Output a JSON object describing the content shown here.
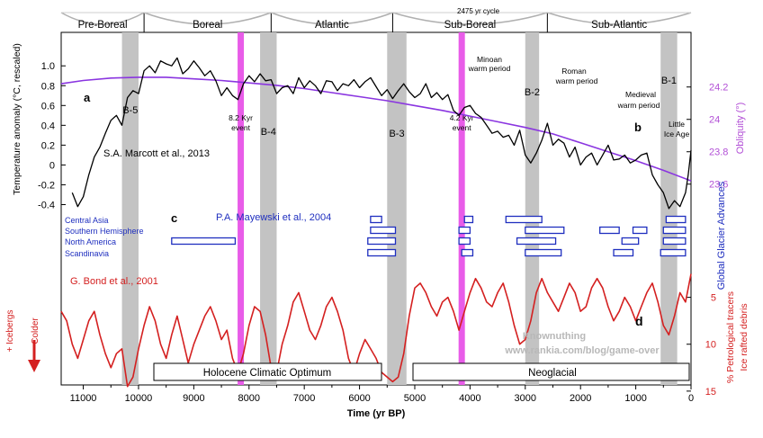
{
  "chart_data": {
    "type": "line",
    "x_axis": {
      "label": "Time (yr BP)",
      "range": [
        11400,
        0
      ],
      "ticks": [
        11000,
        10000,
        9000,
        8000,
        7000,
        6000,
        5000,
        4000,
        3000,
        2000,
        1000,
        0
      ]
    },
    "periods": [
      {
        "name": "Pre-Boreal",
        "start": 11400,
        "end": 9900
      },
      {
        "name": "Boreal",
        "start": 9900,
        "end": 7600
      },
      {
        "name": "Atlantic",
        "start": 7600,
        "end": 5400
      },
      {
        "name": "Sub-Boreal",
        "start": 5400,
        "end": 2600
      },
      {
        "name": "Sub-Atlantic",
        "start": 2600,
        "end": 0
      }
    ],
    "cycle_label": "2475 yr cycle",
    "bond_events": [
      {
        "name": "B-5",
        "start": 10300,
        "end": 10000
      },
      {
        "name": "B-4",
        "start": 7800,
        "end": 7500
      },
      {
        "name": "B-3",
        "start": 5500,
        "end": 5150
      },
      {
        "name": "B-2",
        "start": 3000,
        "end": 2750
      },
      {
        "name": "B-1",
        "start": 550,
        "end": 250
      }
    ],
    "pink_events": [
      {
        "label": "8.2 Kyr event",
        "x": 8150
      },
      {
        "label": "4.2 Kyr event",
        "x": 4150
      }
    ],
    "temperature": {
      "name": "S.A. Marcott et al., 2013",
      "panel": "a",
      "ylabel": "Temperature anomaly (°C, rescaled)",
      "ylim": [
        -0.45,
        1.12
      ],
      "ticks": [
        -0.4,
        -0.2,
        0,
        0.2,
        0.4,
        0.6,
        0.8,
        1.0
      ],
      "tick_labels": [
        "-0.4",
        "-0.2",
        "0",
        "0.2",
        "0.4",
        "0.6",
        "0.8",
        "1.0"
      ],
      "x": [
        11200,
        11100,
        11000,
        10900,
        10800,
        10700,
        10600,
        10500,
        10400,
        10300,
        10200,
        10100,
        10000,
        9900,
        9800,
        9700,
        9600,
        9500,
        9400,
        9300,
        9200,
        9100,
        9000,
        8900,
        8800,
        8700,
        8600,
        8500,
        8400,
        8300,
        8200,
        8100,
        8000,
        7900,
        7800,
        7700,
        7600,
        7500,
        7400,
        7300,
        7200,
        7100,
        7000,
        6900,
        6800,
        6700,
        6600,
        6500,
        6400,
        6300,
        6200,
        6100,
        6000,
        5900,
        5800,
        5700,
        5600,
        5500,
        5400,
        5300,
        5200,
        5100,
        5000,
        4900,
        4800,
        4700,
        4600,
        4500,
        4400,
        4300,
        4200,
        4100,
        4000,
        3900,
        3800,
        3700,
        3600,
        3500,
        3400,
        3300,
        3200,
        3100,
        3000,
        2900,
        2800,
        2700,
        2600,
        2500,
        2400,
        2300,
        2200,
        2100,
        2000,
        1900,
        1800,
        1700,
        1600,
        1500,
        1400,
        1300,
        1200,
        1100,
        1000,
        900,
        800,
        700,
        600,
        500,
        400,
        300,
        200,
        100,
        50,
        0
      ],
      "y": [
        -0.28,
        -0.42,
        -0.32,
        -0.1,
        0.08,
        0.18,
        0.32,
        0.45,
        0.5,
        0.4,
        0.68,
        0.75,
        0.72,
        0.95,
        1.0,
        0.93,
        1.05,
        1.02,
        1.0,
        1.08,
        0.92,
        0.97,
        1.05,
        0.98,
        0.9,
        0.95,
        0.85,
        0.7,
        0.78,
        0.7,
        0.66,
        0.82,
        0.9,
        0.84,
        0.92,
        0.85,
        0.86,
        0.72,
        0.78,
        0.8,
        0.72,
        0.88,
        0.78,
        0.85,
        0.8,
        0.72,
        0.85,
        0.84,
        0.75,
        0.82,
        0.8,
        0.86,
        0.78,
        0.84,
        0.88,
        0.79,
        0.7,
        0.76,
        0.67,
        0.75,
        0.82,
        0.74,
        0.68,
        0.72,
        0.82,
        0.68,
        0.73,
        0.66,
        0.71,
        0.55,
        0.5,
        0.58,
        0.6,
        0.52,
        0.48,
        0.4,
        0.32,
        0.34,
        0.28,
        0.3,
        0.2,
        0.35,
        0.1,
        0.02,
        0.12,
        0.25,
        0.42,
        0.2,
        0.26,
        0.22,
        0.08,
        0.18,
        0.0,
        0.08,
        0.12,
        0.0,
        0.1,
        0.2,
        0.05,
        0.06,
        0.1,
        0.02,
        0.05,
        0.1,
        0.12,
        -0.1,
        -0.2,
        -0.28,
        -0.44,
        -0.36,
        -0.42,
        -0.28,
        -0.1,
        0.15
      ]
    },
    "obliquity": {
      "ylabel": "Obliquity (°)",
      "ticks": [
        23.6,
        23.8,
        24,
        24.2
      ],
      "tick_labels": [
        "23.6",
        "23.8",
        "24",
        "24.2"
      ],
      "ylim": [
        23.443,
        24.404
      ],
      "x": [
        11400,
        11000,
        10500,
        10000,
        9500,
        9000,
        8500,
        8000,
        7500,
        7000,
        6500,
        6000,
        5500,
        5000,
        4500,
        4000,
        3500,
        3000,
        2500,
        2000,
        1500,
        1000,
        500,
        0
      ],
      "y": [
        24.22,
        24.24,
        24.255,
        24.26,
        24.26,
        24.25,
        24.24,
        24.225,
        24.21,
        24.19,
        24.165,
        24.14,
        24.115,
        24.085,
        24.055,
        24.02,
        23.985,
        23.95,
        23.91,
        23.855,
        23.8,
        23.745,
        23.685,
        23.62
      ]
    },
    "glaciers": {
      "name": "P.A. Mayewski et al., 2004",
      "panel": "c",
      "ylabel": "Global Glacier Advances",
      "regions": [
        "Central Asia",
        "Southern Hemisphere",
        "North America",
        "Scandinavia"
      ],
      "advances": [
        {
          "region": 0,
          "start": 5800,
          "end": 5600
        },
        {
          "region": 0,
          "start": 4100,
          "end": 3950
        },
        {
          "region": 0,
          "start": 3350,
          "end": 2700
        },
        {
          "region": 0,
          "start": 450,
          "end": 100
        },
        {
          "region": 1,
          "start": 5800,
          "end": 5350
        },
        {
          "region": 1,
          "start": 4200,
          "end": 4000
        },
        {
          "region": 1,
          "start": 3000,
          "end": 2300
        },
        {
          "region": 1,
          "start": 1650,
          "end": 1300
        },
        {
          "region": 1,
          "start": 1050,
          "end": 800
        },
        {
          "region": 1,
          "start": 500,
          "end": 100
        },
        {
          "region": 2,
          "start": 9400,
          "end": 8250
        },
        {
          "region": 2,
          "start": 5850,
          "end": 5350
        },
        {
          "region": 2,
          "start": 4200,
          "end": 4000
        },
        {
          "region": 2,
          "start": 3150,
          "end": 2450
        },
        {
          "region": 2,
          "start": 1250,
          "end": 950
        },
        {
          "region": 2,
          "start": 500,
          "end": 100
        },
        {
          "region": 3,
          "start": 5850,
          "end": 5350
        },
        {
          "region": 3,
          "start": 4150,
          "end": 3950
        },
        {
          "region": 3,
          "start": 3000,
          "end": 2350
        },
        {
          "region": 3,
          "start": 1400,
          "end": 1050
        },
        {
          "region": 3,
          "start": 550,
          "end": 100
        }
      ]
    },
    "ice_rafted": {
      "name": "G. Bond et al., 2001",
      "panel": "d",
      "ylabel_1": "% Petrological tracers",
      "ylabel_2": "Ice rafted debris",
      "ylim": [
        15.3,
        1.3
      ],
      "ticks": [
        5,
        10,
        15
      ],
      "tick_labels": [
        "5",
        "10",
        "15"
      ],
      "x": [
        11400,
        11300,
        11200,
        11100,
        11000,
        10900,
        10800,
        10700,
        10600,
        10500,
        10400,
        10300,
        10200,
        10100,
        10000,
        9900,
        9800,
        9700,
        9600,
        9500,
        9400,
        9300,
        9200,
        9100,
        9000,
        8900,
        8800,
        8700,
        8600,
        8500,
        8400,
        8300,
        8200,
        8100,
        8000,
        7900,
        7800,
        7700,
        7600,
        7500,
        7400,
        7300,
        7200,
        7100,
        7000,
        6900,
        6800,
        6700,
        6600,
        6500,
        6400,
        6300,
        6200,
        6100,
        6000,
        5900,
        5800,
        5700,
        5600,
        5500,
        5400,
        5300,
        5200,
        5100,
        5000,
        4900,
        4800,
        4700,
        4600,
        4500,
        4400,
        4300,
        4200,
        4100,
        4000,
        3900,
        3800,
        3700,
        3600,
        3500,
        3400,
        3300,
        3200,
        3100,
        3000,
        2900,
        2800,
        2700,
        2600,
        2500,
        2400,
        2300,
        2200,
        2100,
        2000,
        1900,
        1800,
        1700,
        1600,
        1500,
        1400,
        1300,
        1200,
        1100,
        1000,
        900,
        800,
        700,
        600,
        500,
        400,
        300,
        200,
        100,
        0
      ],
      "y": [
        6.5,
        7.5,
        10.0,
        11.5,
        9.5,
        7.5,
        6.5,
        9.0,
        11.0,
        12.5,
        11.0,
        10.5,
        14.5,
        13.5,
        10.5,
        8.0,
        6.0,
        7.5,
        10.0,
        11.5,
        9.0,
        7.0,
        9.5,
        12.0,
        10.0,
        8.5,
        7.0,
        6.0,
        7.5,
        9.5,
        8.5,
        11.5,
        13.0,
        11.0,
        8.0,
        6.0,
        6.5,
        9.0,
        12.5,
        13.0,
        10.0,
        8.0,
        5.5,
        4.5,
        6.5,
        8.5,
        9.5,
        8.0,
        6.0,
        5.0,
        6.5,
        8.5,
        11.5,
        13.0,
        11.0,
        9.5,
        10.5,
        11.5,
        13.0,
        13.5,
        14.0,
        13.5,
        11.0,
        7.0,
        4.0,
        3.5,
        4.5,
        6.0,
        7.0,
        5.5,
        5.0,
        6.5,
        8.5,
        6.5,
        4.5,
        3.0,
        4.0,
        5.5,
        6.0,
        4.5,
        3.5,
        5.5,
        8.0,
        10.0,
        9.5,
        7.5,
        4.5,
        3.0,
        4.5,
        5.5,
        6.5,
        5.0,
        3.5,
        4.5,
        6.5,
        6.0,
        4.0,
        3.0,
        4.0,
        6.0,
        7.5,
        6.5,
        5.0,
        6.0,
        7.5,
        6.0,
        4.5,
        3.5,
        5.5,
        8.0,
        9.0,
        7.0,
        4.5,
        5.5,
        2.5
      ]
    },
    "annotations": {
      "minoan": "Minoan",
      "minoan_2": "warm period",
      "roman": "Roman",
      "roman_2": "warm period",
      "medieval": "Medieval",
      "medieval_2": "warm period",
      "little": "Little",
      "little_2": "Ice Age",
      "panel_b": "b",
      "colder": "Colder",
      "icebergs": "+ Icebergs",
      "holocene_optimum": "Holocene Climatic Optimum",
      "neoglacial": "Neoglacial",
      "watermark_1": "Knownuthing",
      "watermark_2": "www.rankia.com/blog/game-over"
    }
  }
}
